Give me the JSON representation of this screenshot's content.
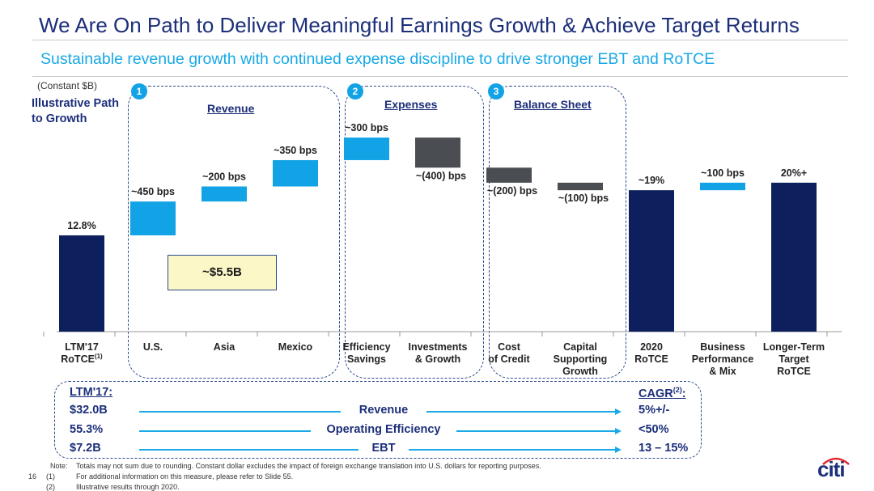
{
  "header": {
    "title": "We Are On Path to Deliver Meaningful Earnings Growth & Achieve Target Returns",
    "subtitle": "Sustainable revenue growth with continued expense discipline to drive stronger EBT and RoTCE"
  },
  "units_note": "(Constant $B)",
  "side_label": "Illustrative Path to Growth",
  "sections": [
    {
      "number": "1",
      "title": "Revenue"
    },
    {
      "number": "2",
      "title": "Expenses"
    },
    {
      "number": "3",
      "title": "Balance Sheet"
    }
  ],
  "chart_data": {
    "type": "bar",
    "subtype": "waterfall",
    "units": "RoTCE % (bps changes)",
    "categories": [
      "LTM'17 RoTCE(1)",
      "U.S.",
      "Asia",
      "Mexico",
      "Efficiency Savings",
      "Investments & Growth",
      "Cost of Credit",
      "Capital Supporting Growth",
      "2020 RoTCE",
      "Business Performance & Mix",
      "Longer-Term Target RoTCE"
    ],
    "category_lines": [
      [
        "LTM'17",
        "RoTCE"
      ],
      [
        "U.S."
      ],
      [
        "Asia"
      ],
      [
        "Mexico"
      ],
      [
        "Efficiency",
        "Savings"
      ],
      [
        "Investments",
        "& Growth"
      ],
      [
        "Cost",
        "of Credit"
      ],
      [
        "Capital",
        "Supporting",
        "Growth"
      ],
      [
        "2020",
        "RoTCE"
      ],
      [
        "Business",
        "Performance",
        "& Mix"
      ],
      [
        "Longer-Term",
        "Target",
        "RoTCE"
      ]
    ],
    "bars": [
      {
        "kind": "total",
        "start": 0,
        "end": 12.8,
        "label": "12.8%",
        "color": "#0d1f5c"
      },
      {
        "kind": "delta",
        "start": 12.8,
        "end": 17.3,
        "label": "~450 bps",
        "color": "#12a3e6"
      },
      {
        "kind": "delta",
        "start": 17.3,
        "end": 19.3,
        "label": "~200 bps",
        "color": "#12a3e6"
      },
      {
        "kind": "delta",
        "start": 19.3,
        "end": 22.8,
        "label": "~350 bps",
        "color": "#12a3e6"
      },
      {
        "kind": "delta",
        "start": 22.8,
        "end": 25.8,
        "label": "~300 bps",
        "color": "#12a3e6"
      },
      {
        "kind": "delta",
        "start": 25.8,
        "end": 21.8,
        "label": "~(400) bps",
        "color": "#4a4d52"
      },
      {
        "kind": "delta",
        "start": 21.8,
        "end": 19.8,
        "label": "~(200) bps",
        "color": "#4a4d52"
      },
      {
        "kind": "delta",
        "start": 19.8,
        "end": 18.8,
        "label": "~(100) bps",
        "color": "#4a4d52"
      },
      {
        "kind": "total",
        "start": 0,
        "end": 18.8,
        "label": "~19%",
        "color": "#0d1f5c"
      },
      {
        "kind": "delta",
        "start": 18.8,
        "end": 19.8,
        "label": "~100 bps",
        "color": "#12a3e6"
      },
      {
        "kind": "total",
        "start": 0,
        "end": 19.8,
        "label": "20%+",
        "color": "#0d1f5c"
      }
    ],
    "annotation": "~$5.5B"
  },
  "bottom": {
    "left_header": "LTM'17:",
    "right_header": "CAGR",
    "right_header_sup": "(2)",
    "right_header_suffix": ":",
    "rows": [
      {
        "left": "$32.0B",
        "middle": "Revenue",
        "right": "5%+/-"
      },
      {
        "left": "55.3%",
        "middle": "Operating Efficiency",
        "right": "<50%"
      },
      {
        "left": "$7.2B",
        "middle": "EBT",
        "right": "13 – 15%"
      }
    ]
  },
  "footnotes": {
    "page_number": "16",
    "note_label": "Note:",
    "note_text": "Totals may not sum due to rounding.  Constant dollar excludes the impact of foreign exchange translation into U.S. dollars for reporting purposes.",
    "n1_label": "(1)",
    "n1_text": "For additional information on this measure, please refer to Slide 55.",
    "n2_label": "(2)",
    "n2_text": "Illustrative results through 2020."
  },
  "logo_text": "citi",
  "colors": {
    "navy": "#0d1f5c",
    "blue": "#12a3e6",
    "gray": "#4a4d52",
    "title": "#1c2f7a"
  }
}
